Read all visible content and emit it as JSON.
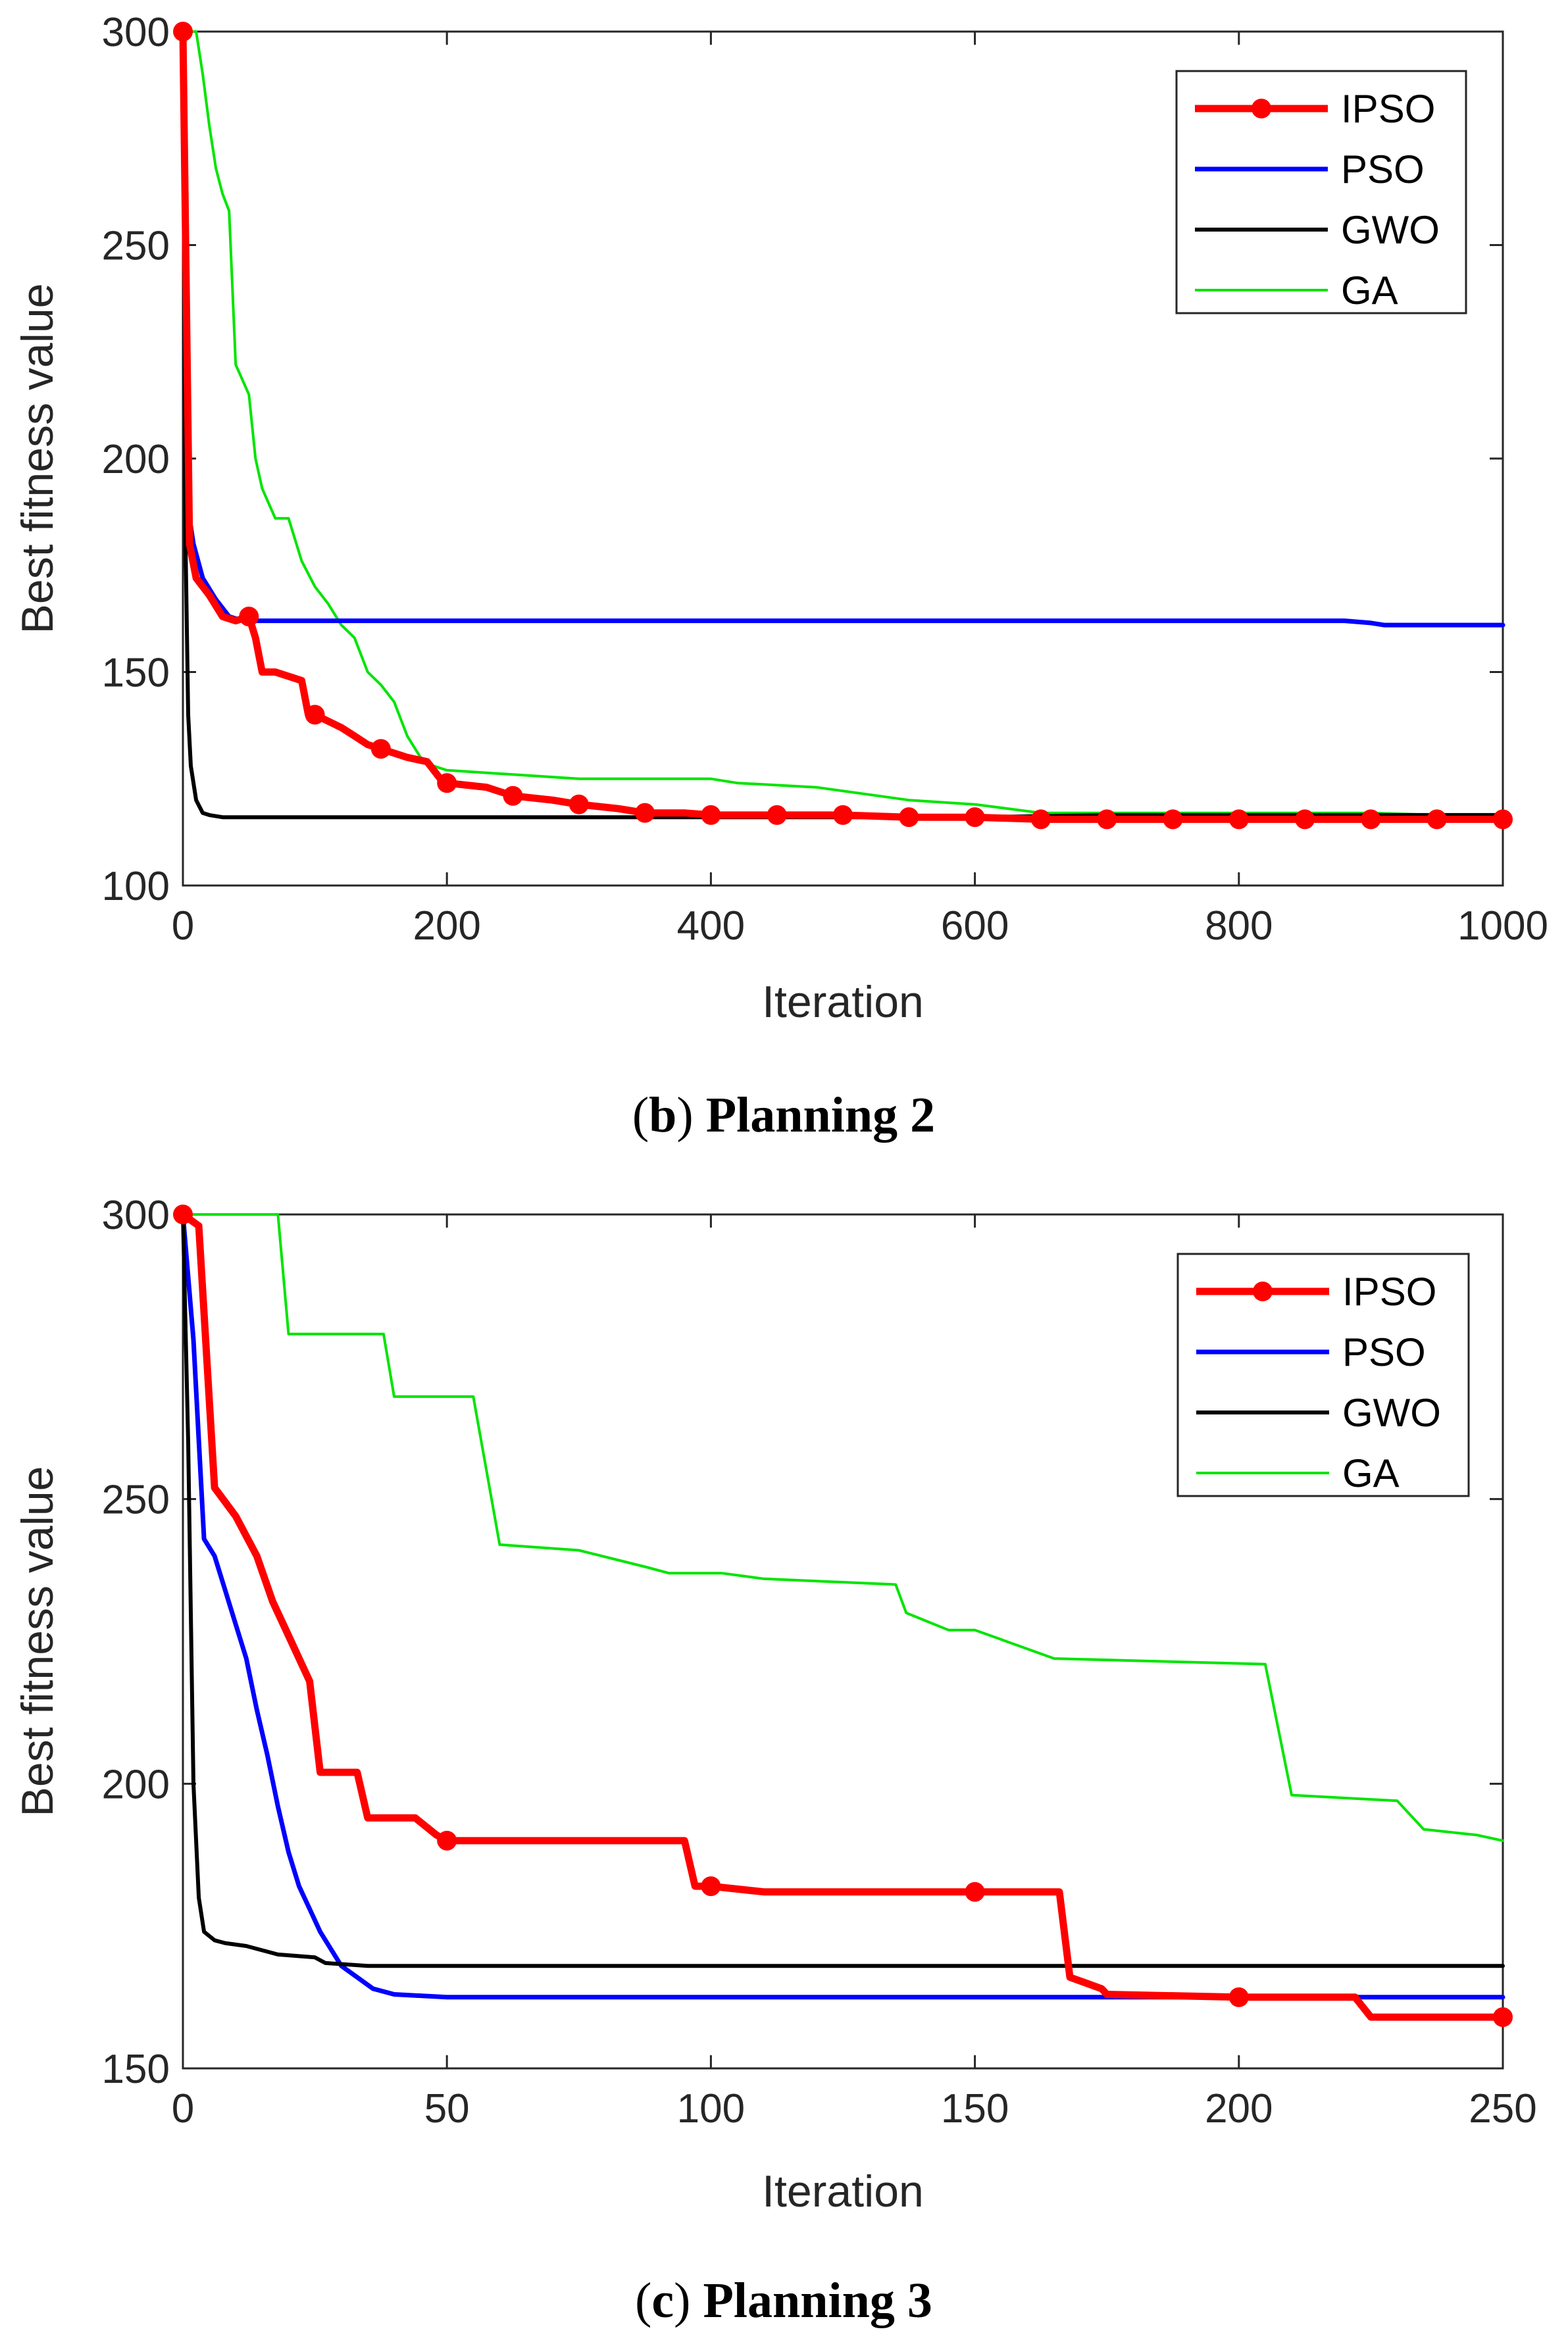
{
  "chart_data": [
    {
      "type": "line",
      "caption": {
        "letter": "b",
        "title": "Planning 2"
      },
      "xlabel": "Iteration",
      "ylabel": "Best fitness value",
      "xlim": [
        0,
        1000
      ],
      "ylim": [
        100,
        300
      ],
      "xticks": [
        0,
        200,
        400,
        600,
        800,
        1000
      ],
      "yticks": [
        100,
        150,
        200,
        250,
        300
      ],
      "legend_position": "top-right",
      "series": [
        {
          "name": "IPSO",
          "color": "#ff0000",
          "markers": true,
          "x": [
            0,
            5,
            10,
            20,
            30,
            40,
            50,
            55,
            60,
            70,
            90,
            95,
            100,
            120,
            130,
            140,
            150,
            160,
            170,
            185,
            195,
            200,
            230,
            250,
            280,
            300,
            330,
            350,
            380,
            400,
            450,
            500,
            550,
            600,
            650,
            700,
            750,
            800,
            850,
            900,
            950,
            1000
          ],
          "y": [
            300,
            180,
            172,
            168,
            163,
            162,
            163,
            158,
            150,
            150,
            148,
            140,
            140,
            137,
            135,
            133,
            132,
            131,
            130,
            129,
            125,
            124,
            123,
            121,
            120,
            119,
            118,
            117,
            117,
            116.5,
            116.5,
            116.5,
            116,
            116,
            115.5,
            115.5,
            115.5,
            115.5,
            115.5,
            115.5,
            115.5,
            115.5
          ]
        },
        {
          "name": "PSO",
          "color": "#0000ff",
          "markers": false,
          "x": [
            0,
            3,
            8,
            15,
            25,
            35,
            45,
            60,
            100,
            200,
            400,
            600,
            800,
            880,
            900,
            910,
            1000
          ],
          "y": [
            300,
            190,
            180,
            172,
            167,
            163,
            162,
            162,
            162,
            162,
            162,
            162,
            162,
            162,
            161.5,
            161,
            161
          ]
        },
        {
          "name": "GWO",
          "color": "#000000",
          "markers": false,
          "x": [
            0,
            2,
            4,
            6,
            10,
            15,
            20,
            30,
            100,
            300,
            600,
            700,
            1000
          ],
          "y": [
            300,
            180,
            140,
            128,
            120,
            117,
            116.5,
            116,
            116,
            116,
            116,
            116.5,
            116.5
          ]
        },
        {
          "name": "GA",
          "color": "#00e400",
          "markers": false,
          "x": [
            0,
            5,
            10,
            15,
            20,
            25,
            30,
            35,
            40,
            50,
            55,
            60,
            70,
            80,
            90,
            100,
            110,
            120,
            130,
            140,
            150,
            160,
            170,
            180,
            190,
            200,
            250,
            300,
            350,
            400,
            420,
            480,
            550,
            600,
            650,
            700,
            800,
            900,
            1000
          ],
          "y": [
            300,
            300,
            300,
            290,
            278,
            268,
            262,
            258,
            222,
            215,
            200,
            193,
            186,
            186,
            176,
            170,
            166,
            161,
            158,
            150,
            147,
            143,
            135,
            130,
            128,
            127,
            126,
            125,
            125,
            125,
            124,
            123,
            120,
            119,
            117,
            117,
            117,
            117,
            116
          ]
        }
      ]
    },
    {
      "type": "line",
      "caption": {
        "letter": "c",
        "title": "Planning 3"
      },
      "xlabel": "Iteration",
      "ylabel": "Best fitness value",
      "xlim": [
        0,
        250
      ],
      "ylim": [
        150,
        300
      ],
      "xticks": [
        0,
        50,
        100,
        150,
        200,
        250
      ],
      "yticks": [
        150,
        200,
        250,
        300
      ],
      "legend_position": "top-right",
      "series": [
        {
          "name": "IPSO",
          "color": "#ff0000",
          "markers": true,
          "x": [
            0,
            3,
            6,
            10,
            14,
            17,
            19,
            24,
            26,
            33,
            35,
            44,
            48,
            50,
            55,
            95,
            97,
            100,
            110,
            150,
            166,
            168,
            174,
            175,
            200,
            222,
            225,
            250
          ],
          "y": [
            300,
            298,
            252,
            247,
            240,
            232,
            228,
            218,
            202,
            202,
            194,
            194,
            191,
            190,
            190,
            190,
            182,
            182,
            181,
            181,
            181,
            166,
            164,
            163,
            162.5,
            162.5,
            159,
            159
          ]
        },
        {
          "name": "PSO",
          "color": "#0000ff",
          "markers": false,
          "x": [
            0,
            2,
            4,
            6,
            8,
            10,
            12,
            14,
            16,
            18,
            20,
            22,
            24,
            26,
            28,
            30,
            33,
            36,
            40,
            50,
            100,
            150,
            200,
            250
          ],
          "y": [
            300,
            278,
            243,
            240,
            234,
            228,
            222,
            213,
            205,
            196,
            188,
            182,
            178,
            174,
            171,
            168,
            166,
            164,
            163,
            162.5,
            162.5,
            162.5,
            162.5,
            162.5
          ]
        },
        {
          "name": "GWO",
          "color": "#000000",
          "markers": false,
          "x": [
            0,
            1,
            2,
            3,
            4,
            6,
            8,
            12,
            18,
            25,
            27,
            35,
            60,
            100,
            150,
            200,
            250
          ],
          "y": [
            300,
            260,
            200,
            180,
            174,
            172.5,
            172,
            171.5,
            170,
            169.5,
            168.5,
            168,
            168,
            168,
            168,
            168,
            168
          ]
        },
        {
          "name": "GA",
          "color": "#00e400",
          "markers": false,
          "x": [
            0,
            18,
            20,
            38,
            40,
            55,
            60,
            75,
            88,
            92,
            102,
            110,
            135,
            137,
            145,
            150,
            165,
            205,
            210,
            230,
            235,
            245,
            250
          ],
          "y": [
            300,
            300,
            279,
            279,
            268,
            268,
            242,
            241,
            238,
            237,
            237,
            236,
            235,
            230,
            227,
            227,
            222,
            221,
            198,
            197,
            192,
            191,
            190
          ]
        }
      ]
    }
  ]
}
